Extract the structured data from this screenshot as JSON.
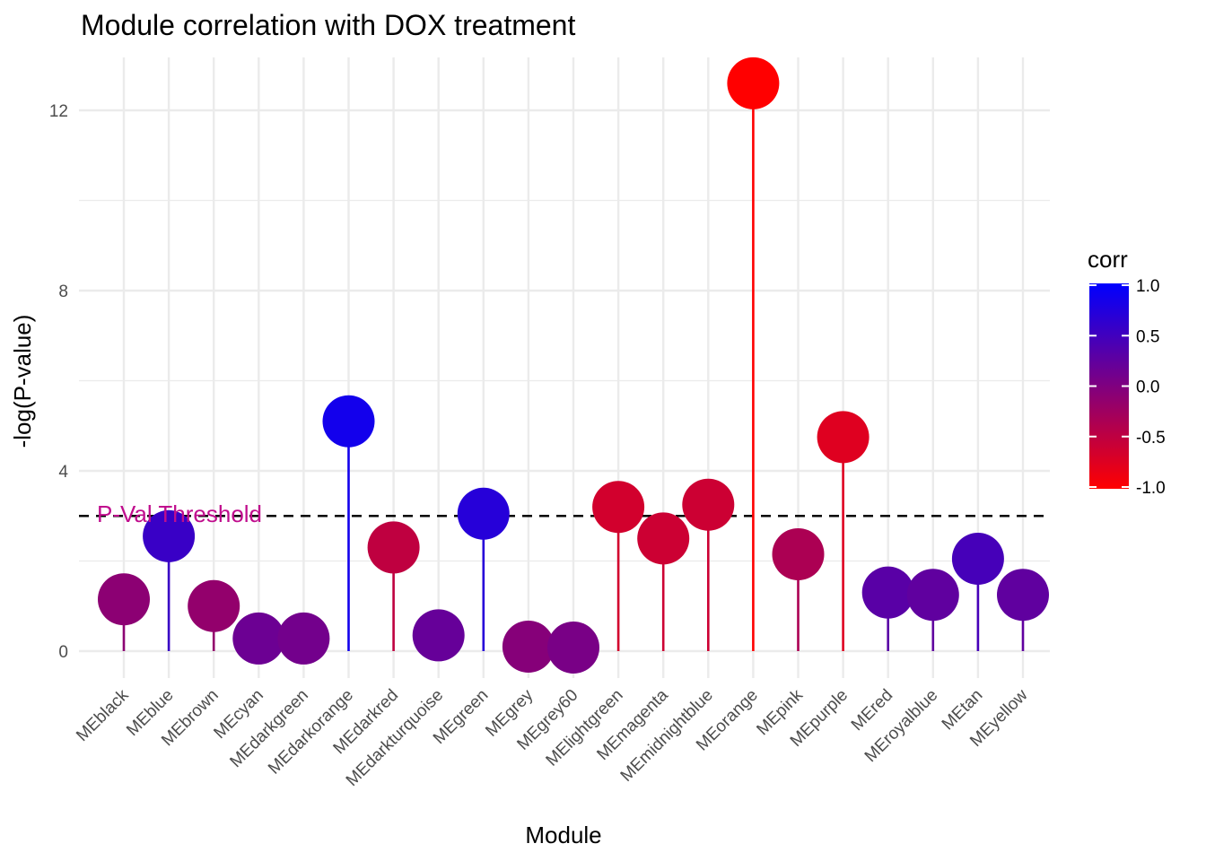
{
  "chart_data": {
    "type": "lollipop",
    "title": "Module correlation with DOX treatment",
    "xlabel": "Module",
    "ylabel": "-log(P-value)",
    "ylim": [
      -0.7,
      13.2
    ],
    "yticks": [
      0,
      4,
      8,
      12
    ],
    "grid": true,
    "categories": [
      "MEblack",
      "MEblue",
      "MEbrown",
      "MEcyan",
      "MEdarkgreen",
      "MEdarkorange",
      "MEdarkred",
      "MEdarkturquoise",
      "MEgreen",
      "MEgrey",
      "MEgrey60",
      "MElightgreen",
      "MEmagenta",
      "MEmidnightblue",
      "MEorange",
      "MEpink",
      "MEpurple",
      "MEred",
      "MEroyalblue",
      "MEtan",
      "MEyellow"
    ],
    "values": [
      1.15,
      2.55,
      1.0,
      0.28,
      0.28,
      5.1,
      2.3,
      0.35,
      3.05,
      0.1,
      0.08,
      3.2,
      2.5,
      3.25,
      12.6,
      2.15,
      4.75,
      1.3,
      1.25,
      2.05,
      1.25
    ],
    "corr": [
      -0.1,
      0.55,
      -0.15,
      0.15,
      0.1,
      0.85,
      -0.5,
      0.2,
      0.7,
      -0.05,
      0.05,
      -0.65,
      -0.6,
      -0.6,
      -1.0,
      -0.35,
      -0.75,
      0.3,
      0.25,
      0.45,
      0.25
    ],
    "threshold": {
      "value": 3.0,
      "label": "P-Val Threshold",
      "color": "#c00d8d"
    },
    "legend": {
      "title": "corr",
      "position": "right",
      "ticks": [
        1.0,
        0.5,
        0.0,
        -0.5,
        -1.0
      ],
      "tick_labels": [
        "1.0",
        "0.5",
        "0.0",
        "-0.5",
        "-1.0"
      ],
      "low_color": "#ff0000",
      "high_color": "#0000ff"
    }
  }
}
